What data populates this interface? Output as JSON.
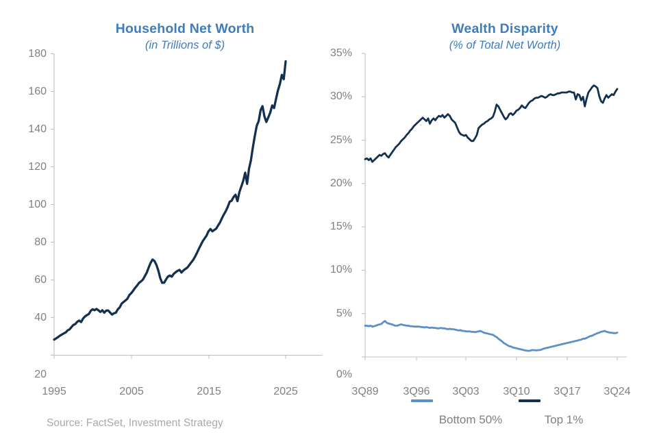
{
  "page": {
    "background": "#ffffff"
  },
  "source_note": "Source: FactSet, Investment Strategy",
  "colors": {
    "title_blue": "#3F7CBA",
    "navy": "#13304F",
    "light_blue": "#5B90C5",
    "axis_line": "#BFBFBF",
    "tick_label_gray": "#808080",
    "source_gray": "#A9A9A9"
  },
  "chart_data": [
    {
      "type": "line",
      "title": "Household Net Worth",
      "subtitle": "(in Trillions of $)",
      "x_frequency": "quarterly",
      "x_range": [
        "1Q 1995",
        "1Q 2025"
      ],
      "x_tick_labels": [
        "1995",
        "2005",
        "2015",
        "2025"
      ],
      "y_tick_labels": [
        "180",
        "160",
        "140",
        "120",
        "100",
        "80",
        "60",
        "40",
        "20"
      ],
      "ylim": [
        20,
        180
      ],
      "grid": false,
      "legend_position": "none",
      "series": [
        {
          "name": "Household Net Worth",
          "color_key": "navy",
          "values": [
            28.3,
            28.9,
            29.6,
            30.4,
            31.0,
            31.6,
            32.1,
            33.2,
            33.7,
            35.0,
            36.1,
            36.6,
            37.8,
            38.4,
            37.6,
            39.5,
            40.6,
            41.3,
            41.9,
            43.6,
            44.4,
            43.9,
            44.6,
            43.8,
            43.0,
            43.9,
            42.6,
            43.7,
            43.8,
            42.7,
            41.6,
            42.3,
            42.6,
            44.4,
            45.4,
            47.4,
            48.3,
            49.1,
            50.0,
            52.0,
            53.0,
            54.3,
            55.8,
            57.0,
            58.4,
            59.2,
            60.1,
            62.0,
            63.8,
            66.5,
            69.0,
            70.8,
            70.0,
            68.0,
            65.0,
            61.0,
            58.4,
            58.5,
            60.2,
            61.8,
            62.3,
            61.7,
            63.2,
            64.1,
            64.8,
            65.3,
            63.9,
            65.0,
            65.8,
            66.5,
            67.8,
            69.2,
            70.5,
            72.2,
            74.2,
            76.5,
            78.5,
            80.5,
            82.0,
            83.5,
            85.8,
            87.0,
            85.8,
            86.5,
            87.2,
            88.9,
            90.5,
            92.8,
            94.8,
            96.6,
            98.8,
            101.5,
            102.0,
            104.0,
            105.2,
            101.8,
            106.5,
            109.5,
            112.5,
            116.9,
            111.0,
            119.0,
            123.5,
            130.3,
            136.3,
            141.8,
            144.3,
            150.0,
            152.2,
            146.8,
            143.8,
            146.3,
            148.8,
            152.6,
            151.2,
            156.0,
            160.5,
            164.0,
            168.8,
            166.5,
            176.0
          ]
        }
      ]
    },
    {
      "type": "line",
      "title": "Wealth Disparity",
      "subtitle": "(% of Total Net Worth)",
      "x_frequency": "quarterly",
      "x_range": [
        "3Q 1989",
        "3Q 2024"
      ],
      "x_tick_labels": [
        "3Q89",
        "3Q96",
        "3Q03",
        "3Q10",
        "3Q17",
        "3Q24"
      ],
      "y_tick_labels": [
        "35%",
        "30%",
        "25%",
        "20%",
        "15%",
        "10%",
        "5%",
        "0%"
      ],
      "ylim": [
        0,
        35
      ],
      "grid": false,
      "legend_position": "bottom",
      "series": [
        {
          "name": "Bottom 50%",
          "color_key": "light_blue",
          "values": [
            3.6,
            3.6,
            3.55,
            3.6,
            3.5,
            3.55,
            3.6,
            3.7,
            3.75,
            3.8,
            4.0,
            4.15,
            3.95,
            3.85,
            3.8,
            3.75,
            3.65,
            3.6,
            3.6,
            3.7,
            3.75,
            3.7,
            3.65,
            3.6,
            3.6,
            3.55,
            3.55,
            3.5,
            3.5,
            3.5,
            3.5,
            3.45,
            3.45,
            3.4,
            3.45,
            3.4,
            3.35,
            3.4,
            3.35,
            3.35,
            3.3,
            3.3,
            3.35,
            3.3,
            3.3,
            3.25,
            3.2,
            3.25,
            3.2,
            3.2,
            3.15,
            3.1,
            3.05,
            3.1,
            3.0,
            3.0,
            2.95,
            2.95,
            2.95,
            2.9,
            2.9,
            2.85,
            2.9,
            2.95,
            3.0,
            2.9,
            2.8,
            2.75,
            2.7,
            2.65,
            2.6,
            2.55,
            2.4,
            2.3,
            2.1,
            1.95,
            1.8,
            1.6,
            1.5,
            1.35,
            1.25,
            1.2,
            1.1,
            1.05,
            1.0,
            0.95,
            0.9,
            0.85,
            0.8,
            0.75,
            0.72,
            0.7,
            0.75,
            0.8,
            0.78,
            0.76,
            0.78,
            0.8,
            0.85,
            0.95,
            1.0,
            1.05,
            1.1,
            1.15,
            1.2,
            1.25,
            1.3,
            1.35,
            1.4,
            1.45,
            1.5,
            1.55,
            1.6,
            1.65,
            1.7,
            1.75,
            1.8,
            1.85,
            1.9,
            1.95,
            2.0,
            2.1,
            2.1,
            2.2,
            2.3,
            2.4,
            2.45,
            2.55,
            2.65,
            2.75,
            2.8,
            2.9,
            2.95,
            3.0,
            2.9,
            2.85,
            2.8,
            2.8,
            2.75,
            2.75,
            2.8
          ]
        },
        {
          "name": "Top 1%",
          "color_key": "navy",
          "values": [
            22.8,
            22.9,
            22.7,
            22.9,
            22.5,
            22.7,
            22.9,
            23.1,
            23.3,
            23.2,
            23.4,
            23.5,
            23.2,
            23.0,
            23.3,
            23.6,
            23.9,
            24.2,
            24.4,
            24.6,
            24.9,
            25.1,
            25.3,
            25.6,
            25.8,
            26.1,
            26.3,
            26.6,
            26.8,
            27.0,
            27.2,
            27.4,
            27.6,
            27.4,
            27.2,
            27.5,
            26.9,
            27.3,
            27.5,
            27.3,
            27.6,
            27.8,
            27.7,
            27.9,
            27.6,
            27.8,
            28.0,
            27.8,
            27.4,
            27.2,
            27.0,
            26.5,
            26.0,
            25.7,
            25.6,
            25.5,
            25.6,
            25.3,
            25.1,
            24.9,
            24.9,
            25.2,
            25.6,
            26.4,
            26.6,
            26.8,
            26.9,
            27.1,
            27.2,
            27.4,
            27.5,
            27.7,
            28.3,
            29.1,
            28.9,
            28.5,
            28.1,
            27.7,
            27.4,
            27.6,
            28.0,
            28.1,
            27.9,
            28.1,
            28.4,
            28.5,
            28.7,
            29.0,
            28.8,
            28.7,
            29.0,
            29.3,
            29.5,
            29.6,
            29.8,
            29.9,
            29.9,
            30.0,
            30.1,
            30.0,
            29.9,
            30.0,
            30.2,
            30.3,
            30.2,
            30.2,
            30.3,
            30.4,
            30.4,
            30.5,
            30.5,
            30.5,
            30.5,
            30.6,
            30.6,
            30.5,
            30.5,
            29.7,
            30.3,
            30.2,
            29.6,
            30.0,
            28.9,
            29.8,
            30.5,
            30.8,
            31.1,
            31.3,
            31.2,
            31.0,
            30.1,
            29.5,
            29.3,
            29.8,
            30.2,
            29.9,
            30.1,
            30.3,
            30.2,
            30.6,
            30.9
          ]
        }
      ]
    }
  ]
}
